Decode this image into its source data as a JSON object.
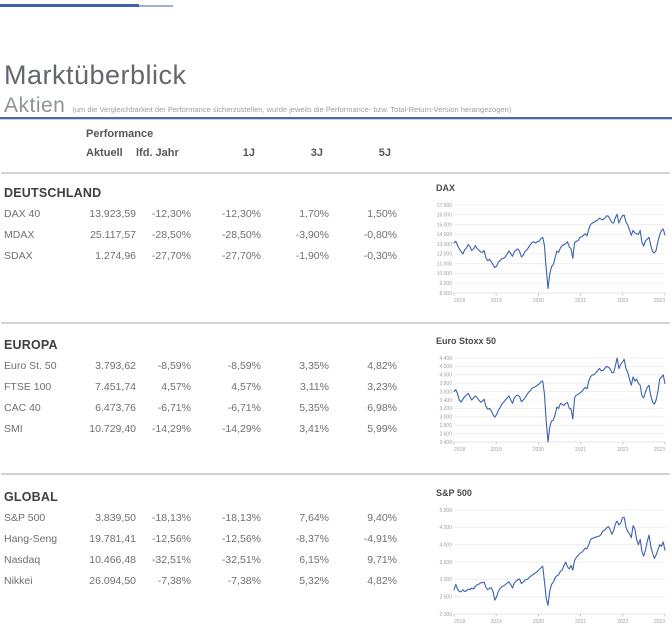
{
  "page": {
    "title": "Marktüberblick",
    "section_title": "Aktien",
    "section_note": "(um die Vergleichbarkeit der Performance sicherzustellen, wurde jeweils die Performance- bzw. Total-Return-Version herangezogen)"
  },
  "colors": {
    "accent_bar": "#3f62ad",
    "accent_bar_light": "#9db0d9",
    "accent_rule": "#4a69b2",
    "chart_line": "#3a63ae",
    "grid_line": "#ececec",
    "tick_text": "#a0a0a0"
  },
  "table": {
    "group_header": "Performance",
    "columns": [
      "Aktuell",
      "lfd. Jahr",
      "1J",
      "3J",
      "5J"
    ],
    "sections": [
      {
        "name": "DEUTSCHLAND",
        "rows": [
          {
            "label": "DAX 40",
            "values": [
              "13.923,59",
              "-12,30%",
              "-12,30%",
              "1,70%",
              "1,50%"
            ]
          },
          {
            "label": "MDAX",
            "values": [
              "25.117,57",
              "-28,50%",
              "-28,50%",
              "-3,90%",
              "-0,80%"
            ]
          },
          {
            "label": "SDAX",
            "values": [
              "1.274,96",
              "-27,70%",
              "-27,70%",
              "-1,90%",
              "-0,30%"
            ]
          }
        ]
      },
      {
        "name": "EUROPA",
        "rows": [
          {
            "label": "Euro St. 50",
            "values": [
              "3.793,62",
              "-8,59%",
              "-8,59%",
              "3,35%",
              "4,82%"
            ]
          },
          {
            "label": "FTSE 100",
            "values": [
              "7.451,74",
              "4,57%",
              "4,57%",
              "3,11%",
              "3,23%"
            ]
          },
          {
            "label": "CAC 40",
            "values": [
              "6.473,76",
              "-6,71%",
              "-6,71%",
              "5,35%",
              "6,98%"
            ]
          },
          {
            "label": "SMI",
            "values": [
              "10.729,40",
              "-14,29%",
              "-14,29%",
              "3,41%",
              "5,99%"
            ]
          }
        ]
      },
      {
        "name": "GLOBAL",
        "rows": [
          {
            "label": "S&P 500",
            "values": [
              "3.839,50",
              "-18,13%",
              "-18,13%",
              "7,64%",
              "9,40%"
            ]
          },
          {
            "label": "Hang-Seng",
            "values": [
              "19.781,41",
              "-12,56%",
              "-12,56%",
              "-8,37%",
              "-4,91%"
            ]
          },
          {
            "label": "Nasdaq",
            "values": [
              "10.466,48",
              "-32,51%",
              "-32,51%",
              "6,15%",
              "9,71%"
            ]
          },
          {
            "label": "Nikkei",
            "values": [
              "26.094,50",
              "-7,38%",
              "-7,38%",
              "5,32%",
              "4,82%"
            ]
          }
        ]
      }
    ]
  },
  "chart_data": [
    {
      "type": "line",
      "title": "DAX",
      "xlabel": "",
      "ylabel": "",
      "x_range": [
        2018,
        2023
      ],
      "x_tick_labels": [
        "2018",
        "2019",
        "2020",
        "2021",
        "2022",
        "2023"
      ],
      "ylim": [
        8000,
        17000
      ],
      "y_tick_values": [
        17000,
        16000,
        15000,
        14000,
        13000,
        12000,
        11000,
        10000,
        9000,
        8000
      ],
      "y_tick_labels": [
        "17.000",
        "16.000",
        "15.000",
        "14.000",
        "13.000",
        "12.000",
        "11.000",
        "10.000",
        "9.000",
        "8.000"
      ],
      "values": [
        13100,
        13300,
        12900,
        12500,
        12250,
        12000,
        12400,
        12600,
        12950,
        12750,
        12350,
        12500,
        12850,
        12550,
        12400,
        12200,
        12150,
        12350,
        11600,
        11300,
        11450,
        11200,
        10900,
        10600,
        10750,
        11150,
        11300,
        11500,
        11550,
        11700,
        12000,
        12300,
        12050,
        11750,
        12200,
        12400,
        12500,
        12250,
        11700,
        11850,
        12250,
        12400,
        12650,
        12900,
        13150,
        13250,
        13100,
        13250,
        13300,
        13550,
        13700,
        12900,
        10500,
        8450,
        9900,
        10700,
        10900,
        11600,
        12300,
        12150,
        12600,
        12850,
        12950,
        13050,
        13250,
        12700,
        12550,
        11550,
        13150,
        13300,
        13350,
        13700,
        13750,
        13900,
        14050,
        13850,
        14550,
        15000,
        15150,
        15250,
        15350,
        15450,
        15650,
        15550,
        15500,
        15650,
        15900,
        15850,
        15550,
        15200,
        15150,
        15700,
        16050,
        15150,
        15600,
        15900,
        15950,
        15250,
        14950,
        14450,
        13900,
        14400,
        14150,
        14050,
        14000,
        14400,
        13200,
        12800,
        13350,
        13500,
        13700,
        12850,
        12250,
        12100,
        12350,
        13250,
        13950,
        14400,
        14550,
        13920
      ]
    },
    {
      "type": "line",
      "title": "Euro Stoxx 50",
      "xlabel": "",
      "ylabel": "",
      "x_range": [
        2018,
        2023
      ],
      "x_tick_labels": [
        "2018",
        "2019",
        "2020",
        "2021",
        "2022",
        "2023"
      ],
      "ylim": [
        2400,
        4400
      ],
      "y_tick_values": [
        4400,
        4200,
        4000,
        3800,
        3600,
        3400,
        3200,
        3000,
        2800,
        2600,
        2400
      ],
      "y_tick_labels": [
        "4.400",
        "4.200",
        "4.000",
        "3.800",
        "3.600",
        "3.400",
        "3.200",
        "3.000",
        "2.800",
        "2.600",
        "2.400"
      ],
      "values": [
        3600,
        3650,
        3550,
        3400,
        3350,
        3420,
        3480,
        3520,
        3560,
        3480,
        3400,
        3450,
        3500,
        3460,
        3400,
        3350,
        3370,
        3420,
        3250,
        3180,
        3200,
        3150,
        3050,
        2990,
        3050,
        3150,
        3220,
        3300,
        3350,
        3400,
        3450,
        3500,
        3400,
        3320,
        3450,
        3500,
        3520,
        3480,
        3360,
        3400,
        3450,
        3520,
        3580,
        3620,
        3680,
        3700,
        3720,
        3750,
        3780,
        3830,
        3850,
        3550,
        2900,
        2400,
        2750,
        2900,
        2920,
        3050,
        3230,
        3200,
        3320,
        3300,
        3270,
        3320,
        3340,
        3200,
        3190,
        2950,
        3450,
        3520,
        3530,
        3570,
        3600,
        3650,
        3700,
        3670,
        3850,
        3950,
        4000,
        4000,
        4050,
        4100,
        4150,
        4100,
        4100,
        4150,
        4200,
        4180,
        4150,
        4050,
        4050,
        4220,
        4400,
        4150,
        4250,
        4300,
        4370,
        4150,
        4050,
        3900,
        3750,
        3950,
        3850,
        3900,
        3800,
        3750,
        3500,
        3450,
        3600,
        3700,
        3750,
        3500,
        3350,
        3300,
        3400,
        3600,
        3900,
        3950,
        4000,
        3794
      ]
    },
    {
      "type": "line",
      "title": "S&P 500",
      "xlabel": "",
      "ylabel": "",
      "x_range": [
        2018,
        2023
      ],
      "x_tick_labels": [
        "2018",
        "2019",
        "2020",
        "2021",
        "2022",
        "2023"
      ],
      "ylim": [
        2000,
        5000
      ],
      "y_tick_values": [
        5000,
        4500,
        4000,
        3500,
        3000,
        2500,
        2000
      ],
      "y_tick_labels": [
        "5.000",
        "4.500",
        "4.000",
        "3.500",
        "3.000",
        "2.500",
        "2.000"
      ],
      "values": [
        2700,
        2850,
        2720,
        2650,
        2640,
        2700,
        2650,
        2670,
        2720,
        2700,
        2750,
        2720,
        2800,
        2840,
        2860,
        2900,
        2900,
        2920,
        2770,
        2700,
        2740,
        2760,
        2650,
        2400,
        2500,
        2650,
        2730,
        2790,
        2810,
        2850,
        2890,
        2930,
        2850,
        2750,
        2890,
        2950,
        2990,
        3010,
        2880,
        2920,
        2980,
        2990,
        3030,
        3080,
        3120,
        3150,
        3190,
        3230,
        3280,
        3330,
        3380,
        2950,
        2450,
        2250,
        2650,
        2850,
        2920,
        3040,
        3100,
        3130,
        3230,
        3270,
        3400,
        3500,
        3360,
        3300,
        3400,
        3270,
        3550,
        3630,
        3690,
        3750,
        3780,
        3830,
        3900,
        3880,
        4000,
        4150,
        4180,
        4200,
        4220,
        4230,
        4250,
        4300,
        4390,
        4420,
        4480,
        4520,
        4450,
        4300,
        4400,
        4600,
        4680,
        4570,
        4620,
        4770,
        4790,
        4500,
        4380,
        4320,
        4200,
        4550,
        4450,
        4150,
        4000,
        4150,
        3800,
        3670,
        3850,
        4100,
        4280,
        3950,
        3750,
        3600,
        3700,
        3850,
        4000,
        3950,
        4080,
        3840
      ]
    }
  ]
}
